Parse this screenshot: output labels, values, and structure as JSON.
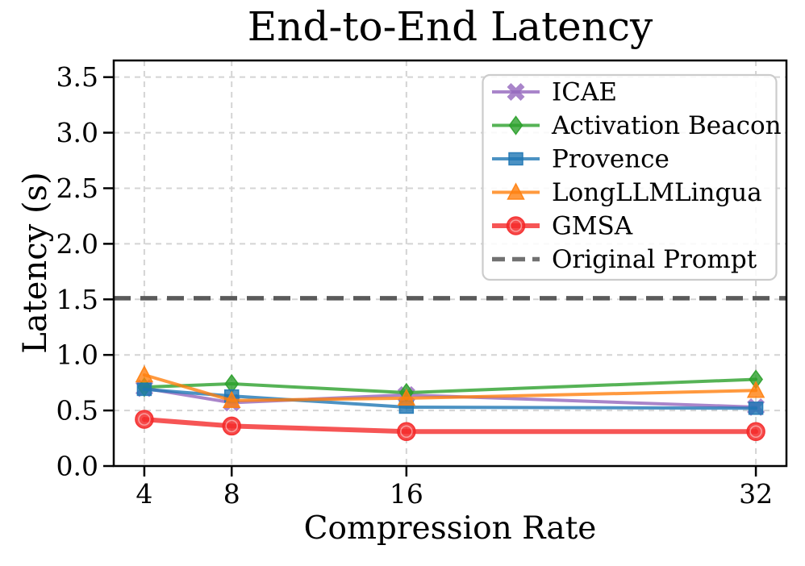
{
  "chart_data": {
    "type": "line",
    "title": "End-to-End Latency",
    "xlabel": "Compression Rate",
    "ylabel": "Latency (s)",
    "x": [
      4,
      8,
      16,
      32
    ],
    "xtick_labels": [
      "4",
      "8",
      "16",
      "32"
    ],
    "yticks": [
      0.0,
      0.5,
      1.0,
      1.5,
      2.0,
      2.5,
      3.0,
      3.5
    ],
    "xlim": [
      2.6,
      33.4
    ],
    "ylim": [
      0.0,
      3.65
    ],
    "grid": true,
    "grid_color": "#d4d4d4",
    "legend_position": "upper right",
    "series": [
      {
        "name": "ICAE",
        "marker": "x",
        "color": "#9467bd",
        "line_width": 4,
        "values": [
          0.7,
          0.57,
          0.64,
          0.53
        ]
      },
      {
        "name": "Activation Beacon",
        "marker": "diamond",
        "color": "#2ca02c",
        "line_width": 4,
        "values": [
          0.71,
          0.74,
          0.66,
          0.78
        ]
      },
      {
        "name": "Provence",
        "marker": "square",
        "color": "#1f77b4",
        "line_width": 4,
        "values": [
          0.69,
          0.63,
          0.53,
          0.52
        ]
      },
      {
        "name": "LongLLMLingua",
        "marker": "triangle",
        "color": "#ff7f0e",
        "line_width": 4,
        "values": [
          0.82,
          0.59,
          0.61,
          0.68
        ]
      },
      {
        "name": "GMSA",
        "marker": "circle",
        "color": "#f42a2a",
        "line_width": 6,
        "values": [
          0.42,
          0.36,
          0.31,
          0.31
        ]
      }
    ],
    "reference_line": {
      "name": "Original Prompt",
      "value": 1.51,
      "style": "dashed",
      "color": "#4d4d4d"
    }
  }
}
